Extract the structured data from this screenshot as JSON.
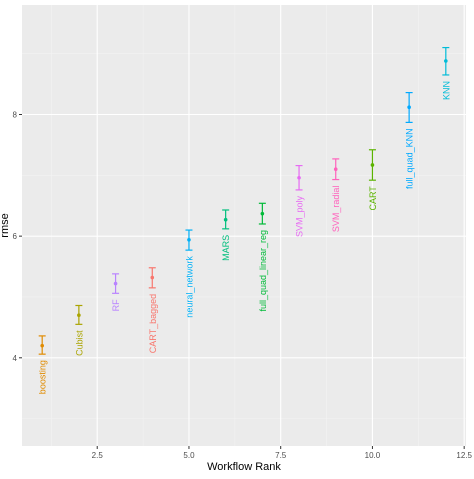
{
  "chart_data": {
    "type": "scatter",
    "title": "",
    "xlabel": "Workflow Rank",
    "ylabel": "rmse",
    "xlim": [
      0.45,
      12.55
    ],
    "ylim": [
      2.55,
      9.8
    ],
    "x_ticks": [
      2.5,
      5.0,
      7.5,
      10.0,
      12.5
    ],
    "x_tick_labels": [
      "2.5",
      "5.0",
      "7.5",
      "10.0",
      "12.5"
    ],
    "y_ticks": [
      4,
      6,
      8
    ],
    "y_tick_labels": [
      "4",
      "6",
      "8"
    ],
    "grid": true,
    "legend": "none",
    "error_bars": true,
    "point_labels": "rotated 90 degrees below each point",
    "series": [
      {
        "name": "boosting",
        "x": 1,
        "y": 4.2,
        "ymin": 4.06,
        "ymax": 4.36,
        "color": "#E08B00"
      },
      {
        "name": "Cubist",
        "x": 2,
        "y": 4.7,
        "ymin": 4.55,
        "ymax": 4.86,
        "color": "#AAA400"
      },
      {
        "name": "RF",
        "x": 3,
        "y": 5.22,
        "ymin": 5.06,
        "ymax": 5.38,
        "color": "#B983FF"
      },
      {
        "name": "CART_bagged",
        "x": 4,
        "y": 5.32,
        "ymin": 5.15,
        "ymax": 5.48,
        "color": "#F8766D"
      },
      {
        "name": "neural_network",
        "x": 5,
        "y": 5.94,
        "ymin": 5.77,
        "ymax": 6.1,
        "color": "#00B0F6"
      },
      {
        "name": "MARS",
        "x": 6,
        "y": 6.27,
        "ymin": 6.12,
        "ymax": 6.43,
        "color": "#00BF7D"
      },
      {
        "name": "full_quad_linear_reg",
        "x": 7,
        "y": 6.37,
        "ymin": 6.2,
        "ymax": 6.54,
        "color": "#00BA38"
      },
      {
        "name": "SVM_poly",
        "x": 8,
        "y": 6.96,
        "ymin": 6.76,
        "ymax": 7.16,
        "color": "#E76BF3"
      },
      {
        "name": "SVM_radial",
        "x": 9,
        "y": 7.1,
        "ymin": 6.93,
        "ymax": 7.27,
        "color": "#FF62BC"
      },
      {
        "name": "CART",
        "x": 10,
        "y": 7.17,
        "ymin": 6.92,
        "ymax": 7.42,
        "color": "#5BB300"
      },
      {
        "name": "full_quad_KNN",
        "x": 11,
        "y": 8.12,
        "ymin": 7.87,
        "ymax": 8.36,
        "color": "#00A9FF"
      },
      {
        "name": "KNN",
        "x": 12,
        "y": 8.88,
        "ymin": 8.65,
        "ymax": 9.1,
        "color": "#00BCD8"
      }
    ]
  },
  "colors": {
    "panel_background": "#EBEBEB",
    "grid_major": "#FFFFFF",
    "grid_minor": "#F3F3F3",
    "axis_text": "#4D4D4D",
    "axis_title": "#000000"
  }
}
